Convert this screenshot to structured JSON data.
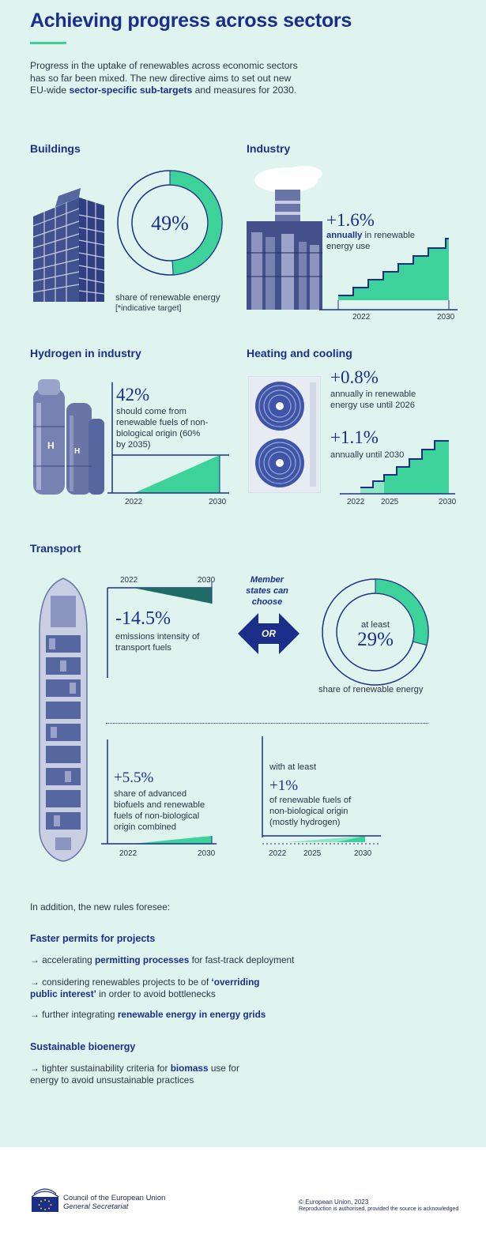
{
  "title": "Achieving progress across sectors",
  "intro": {
    "part1": "Progress in the uptake of renewables across economic sectors has so far been mixed. The new directive aims to set out new EU-wide ",
    "highlight": "sector-specific sub-targets",
    "part2": " and measures for 2030."
  },
  "colors": {
    "navy": "#1b2f8a",
    "green": "#3dd29a",
    "light_green": "#8fe6c4",
    "background": "#dff4ef",
    "dark_teal": "#1f6b66"
  },
  "buildings": {
    "heading": "Buildings",
    "value": "49%",
    "share": 0.49,
    "caption": "share of renewable energy",
    "note": "[*indicative target]",
    "icon": "office-building-icon"
  },
  "industry": {
    "heading": "Industry",
    "value": "+1.6%",
    "caption_bold": "annually",
    "caption_rest": " in renewable energy use",
    "year_start": "2022",
    "year_end": "2030",
    "icon": "factory-chimney-icon"
  },
  "hydrogen": {
    "heading": "Hydrogen in industry",
    "value": "42%",
    "caption": "should come from renewable fuels of non-biological origin (60% by 2035)",
    "year_start": "2022",
    "year_end": "2030",
    "icon": "hydrogen-tanks-icon"
  },
  "heating": {
    "heading": "Heating and cooling",
    "value1": "+0.8%",
    "caption1": "annually in renewable energy use until 2026",
    "value2": "+1.1%",
    "caption2": "annually until 2030",
    "years": [
      "2022",
      "2025",
      "2030"
    ],
    "icon": "heat-pump-icon"
  },
  "transport": {
    "heading": "Transport",
    "icon": "container-ship-icon",
    "emissions": {
      "value": "-14.5%",
      "caption": "emissions intensity of transport fuels",
      "year_start": "2022",
      "year_end": "2030"
    },
    "choose": "Member states can choose",
    "or": "OR",
    "share": {
      "prefix": "at least",
      "value": "29%",
      "fraction": 0.29,
      "caption": "share of renewable energy"
    },
    "biofuels": {
      "value": "+5.5%",
      "caption": "share of advanced biofuels and renewable fuels of non-biological origin combined",
      "year_start": "2022",
      "year_end": "2030"
    },
    "rfnbo": {
      "prefix": "with at least",
      "value": "+1%",
      "caption": "of renewable fuels of non-biological origin (mostly hydrogen)",
      "years": [
        "2022",
        "2025",
        "2030"
      ]
    }
  },
  "rules": {
    "intro": "In addition, the new rules foresee:",
    "faster_permits": {
      "heading": "Faster permits for projects",
      "items": [
        {
          "pre": "→ accelerating ",
          "bold": "permitting processes",
          "post": " for fast-track deployment"
        },
        {
          "pre": "→ considering renewables projects to be of ",
          "bold": "‘overriding public interest’",
          "post": " in order to avoid bottlenecks"
        },
        {
          "pre": "→ further integrating ",
          "bold": "renewable energy in energy grids",
          "post": ""
        }
      ]
    },
    "bioenergy": {
      "heading": "Sustainable bioenergy",
      "items": [
        {
          "pre": "→ tighter sustainability criteria for ",
          "bold": "biomass",
          "post": " use for energy to avoid unsustainable practices"
        }
      ]
    }
  },
  "footer": {
    "org_line1": "Council of the European Union",
    "org_line2": "General Secretariat",
    "copyright": "© European Union, 2023",
    "reproduction": "Reproduction is authorised, provided the source is acknowledged",
    "logo_icon": "council-logo-icon",
    "flag_icon": "eu-flag-icon"
  }
}
